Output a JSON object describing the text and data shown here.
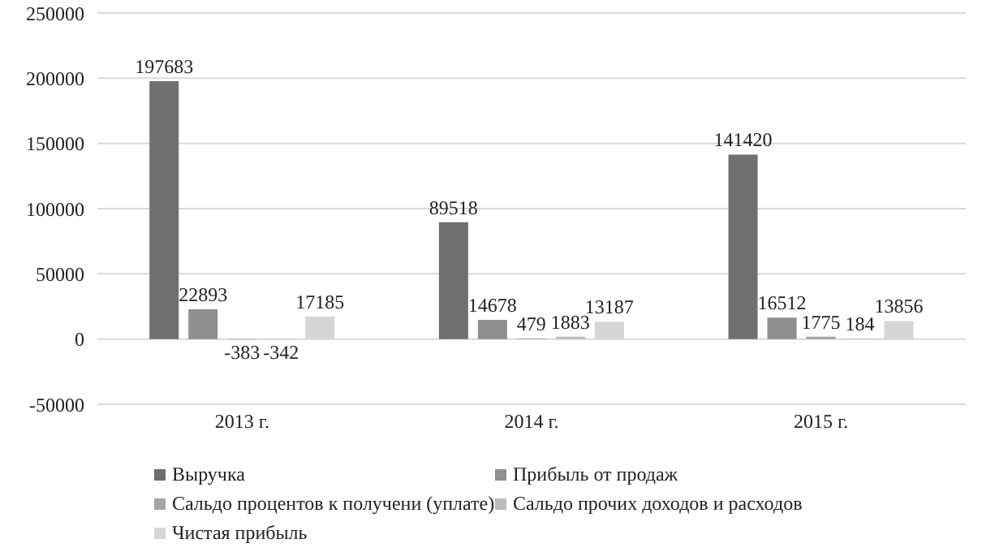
{
  "chart_data": {
    "type": "bar",
    "categories": [
      "2013 г.",
      "2014 г.",
      "2015 г."
    ],
    "series": [
      {
        "name": "Выручка",
        "color": "#6f6f6f",
        "values": [
          197683,
          89518,
          141420
        ]
      },
      {
        "name": "Прибыль от продаж",
        "color": "#8f8f8f",
        "values": [
          22893,
          14678,
          16512
        ]
      },
      {
        "name": "Сальдо процентов к получени (уплате)",
        "color": "#a5a5a5",
        "values": [
          -383,
          479,
          1775
        ]
      },
      {
        "name": "Сальдо прочих доходов и расходов",
        "color": "#bdbdbd",
        "values": [
          -342,
          1883,
          184
        ]
      },
      {
        "name": "Чистая прибыль",
        "color": "#d6d6d6",
        "values": [
          17185,
          13187,
          13856
        ]
      }
    ],
    "ylim": [
      -50000,
      250000
    ],
    "yticks": [
      -50000,
      0,
      50000,
      100000,
      150000,
      200000,
      250000
    ],
    "grid": "y",
    "legend": "bottom",
    "data_labels": true
  }
}
